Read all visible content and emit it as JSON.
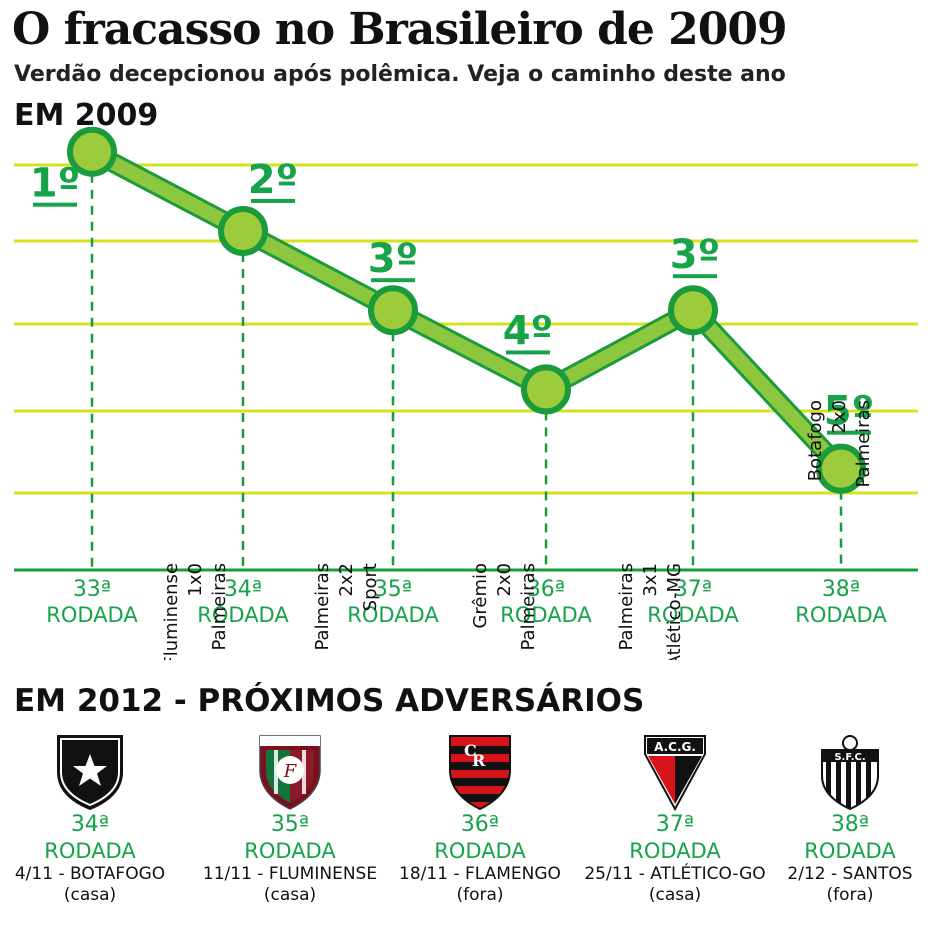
{
  "header": {
    "title": "O fracasso no Brasileiro de 2009",
    "subtitle": "Verdão decepcionou após polêmica. Veja o caminho deste ano",
    "section_2009": "EM 2009",
    "section_2012": "EM 2012 - PRÓXIMOS ADVERSÁRIOS"
  },
  "colors": {
    "line": "#8dc63f",
    "marker_fill": "#9ccc3c",
    "marker_stroke": "#1a9b3c",
    "grid": "#d5e21c",
    "accent_green": "#17a34a"
  },
  "chart_data": {
    "type": "line",
    "y_inverted": true,
    "ylim": [
      0.6,
      5.9
    ],
    "categories": [
      "33ª RODADA",
      "34ª RODADA",
      "35ª RODADA",
      "36ª RODADA",
      "37ª RODADA",
      "38ª RODADA"
    ],
    "category_parts": [
      [
        "33ª",
        "RODADA"
      ],
      [
        "34ª",
        "RODADA"
      ],
      [
        "35ª",
        "RODADA"
      ],
      [
        "36ª",
        "RODADA"
      ],
      [
        "37ª",
        "RODADA"
      ],
      [
        "38ª",
        "RODADA"
      ]
    ],
    "series": [
      {
        "values": [
          1,
          2,
          3,
          4,
          3,
          5
        ]
      }
    ],
    "point_labels": [
      "1º",
      "2º",
      "3º",
      "4º",
      "3º",
      "5º"
    ],
    "results": [
      [],
      [
        "Fluminense",
        "1x0",
        "Palmeiras"
      ],
      [
        "Palmeiras",
        "2x2",
        "Sport"
      ],
      [
        "Grêmio",
        "2x0",
        "Palmeiras"
      ],
      [
        "Palmeiras",
        "3x1",
        "Atlético-MG"
      ],
      [
        "Botafogo",
        "2x0",
        "Palmeiras"
      ]
    ],
    "grid": true,
    "legend": "none"
  },
  "next_games": [
    {
      "round": "34ª",
      "label": "RODADA",
      "date": "4/11 - BOTAFOGO",
      "venue": "(casa)",
      "badge": "botafogo-badge-icon"
    },
    {
      "round": "35ª",
      "label": "RODADA",
      "date": "11/11 - FLUMINENSE",
      "venue": "(casa)",
      "badge": "fluminense-badge-icon"
    },
    {
      "round": "36ª",
      "label": "RODADA",
      "date": "18/11 - FLAMENGO",
      "venue": "(fora)",
      "badge": "flamengo-badge-icon"
    },
    {
      "round": "37ª",
      "label": "RODADA",
      "date": "25/11 - ATLÉTICO-GO",
      "venue": "(casa)",
      "badge": "atletico-go-badge-icon"
    },
    {
      "round": "38ª",
      "label": "RODADA",
      "date": "2/12 - SANTOS",
      "venue": "(fora)",
      "badge": "santos-badge-icon"
    }
  ],
  "badge_text": {
    "acg": "A.C.G.",
    "sfc": "S.F.C."
  }
}
